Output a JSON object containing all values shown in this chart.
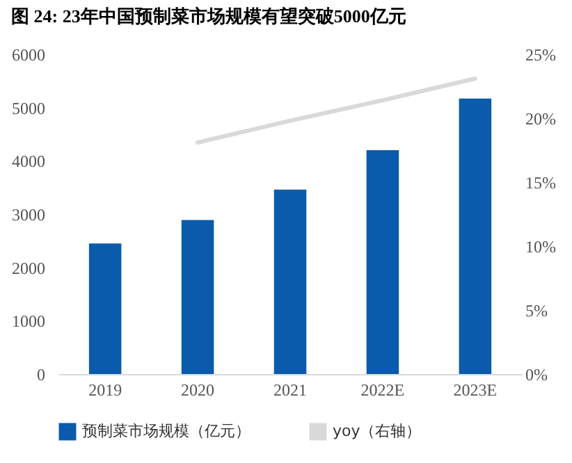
{
  "chart_data": {
    "type": "bar",
    "title": "图 24: 23年中国预制菜市场规模有望突破5000亿元",
    "categories": [
      "2019",
      "2020",
      "2021",
      "2022E",
      "2023E"
    ],
    "series": [
      {
        "name": "预制菜市场规模（亿元）",
        "color": "#0a5bab",
        "values": [
          2450,
          2890,
          3460,
          4200,
          5170
        ]
      },
      {
        "name": "yoy（右轴）",
        "type": "line",
        "axis": "y2",
        "color": "#d9d9d9",
        "values": [
          null,
          18.1,
          19.8,
          21.4,
          23.1
        ]
      }
    ],
    "ylim": [
      0,
      6000
    ],
    "yticks": [
      0,
      1000,
      2000,
      3000,
      4000,
      5000,
      6000
    ],
    "y2lim": [
      0,
      25
    ],
    "y2ticks": [
      {
        "value": 0,
        "label": "0%"
      },
      {
        "value": 5,
        "label": "5%"
      },
      {
        "value": 10,
        "label": "10%"
      },
      {
        "value": 15,
        "label": "15%"
      },
      {
        "value": 20,
        "label": "20%"
      },
      {
        "value": 25,
        "label": "25%"
      }
    ],
    "grid": false,
    "legend": "bottom"
  }
}
